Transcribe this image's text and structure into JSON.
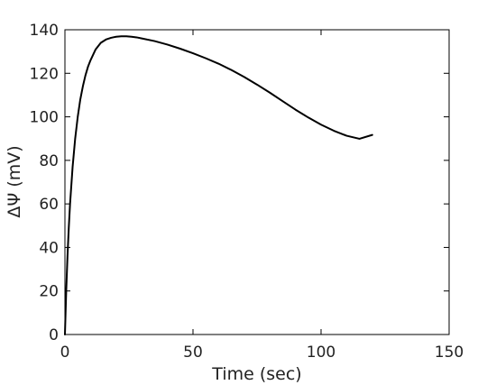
{
  "chart_data": {
    "type": "line",
    "title": "",
    "xlabel": "Time (sec)",
    "ylabel": "ΔΨ (mV)",
    "xlim": [
      0,
      150
    ],
    "ylim": [
      0,
      140
    ],
    "xticks": [
      0,
      50,
      100,
      150
    ],
    "yticks": [
      0,
      20,
      40,
      60,
      80,
      100,
      120,
      140
    ],
    "grid": false,
    "legend": "none",
    "colors": {
      "line": "#000000",
      "axes": "#000000",
      "text": "#222222",
      "background": "#ffffff"
    },
    "series": [
      {
        "x": [
          0,
          0.5,
          1,
          1.5,
          2,
          3,
          4,
          5,
          6,
          7,
          8,
          9,
          10,
          12,
          14,
          16,
          18,
          20,
          22,
          24,
          26,
          28,
          30,
          35,
          40,
          45,
          50,
          55,
          60,
          65,
          70,
          75,
          80,
          85,
          90,
          95,
          100,
          105,
          110,
          115,
          120
        ],
        "y": [
          0,
          20,
          36,
          49,
          60,
          77,
          90,
          100,
          108,
          114,
          119,
          123,
          126,
          131,
          134,
          135.5,
          136.3,
          136.8,
          137,
          137,
          136.8,
          136.5,
          136,
          134.8,
          133.2,
          131.3,
          129.2,
          126.9,
          124.4,
          121.5,
          118.3,
          114.8,
          111.1,
          107.2,
          103.3,
          99.7,
          96.4,
          93.6,
          91.3,
          89.9,
          91.7
        ]
      }
    ]
  }
}
